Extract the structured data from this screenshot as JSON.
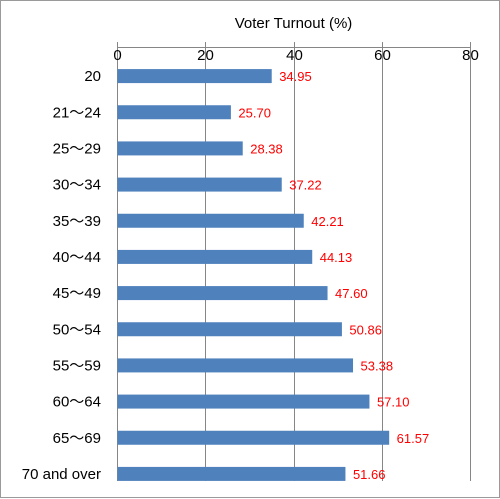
{
  "chart_data": {
    "type": "bar",
    "orientation": "horizontal",
    "title": "",
    "xlabel": "Voter Turnout (%)",
    "ylabel": "",
    "xlim": [
      0,
      80
    ],
    "x_ticks": [
      "0",
      "20",
      "40",
      "60",
      "80"
    ],
    "x_tick_values": [
      0,
      20,
      40,
      60,
      80
    ],
    "x_axis_position": "top",
    "grid": true,
    "legend": "none",
    "categories": [
      "20",
      "21～24",
      "25～29",
      "30～34",
      "35～39",
      "40～44",
      "45～49",
      "50～54",
      "55～59",
      "60～64",
      "65～69",
      "70 and over"
    ],
    "values": [
      34.95,
      25.7,
      28.38,
      37.22,
      42.21,
      44.13,
      47.6,
      50.86,
      53.38,
      57.1,
      61.57,
      51.66
    ],
    "value_labels": [
      "34.95",
      "25.70",
      "28.38",
      "37.22",
      "42.21",
      "44.13",
      "47.60",
      "50.86",
      "53.38",
      "57.10",
      "61.57",
      "51.66"
    ],
    "bar_color": "#4f81bd",
    "label_color": "#ff0000"
  }
}
